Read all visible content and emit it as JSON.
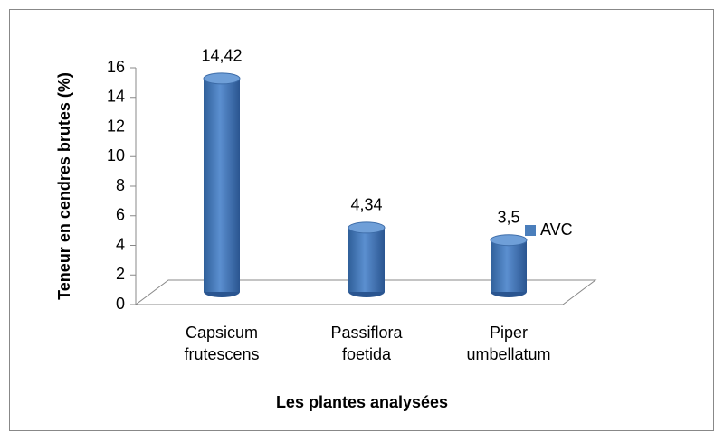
{
  "chart_data": {
    "type": "bar",
    "x_label": "Les plantes analysées",
    "y_label": "Teneur en cendres brutes (%)",
    "categories": [
      "Capsicum frutescens",
      "Passiflora foetida",
      "Piper umbellatum"
    ],
    "series": [
      {
        "name": "AVC",
        "color": "#4a7ebb",
        "values": [
          14.42,
          4.34,
          3.5
        ],
        "value_labels": [
          "14,42",
          "4,34",
          "3,5"
        ]
      }
    ],
    "ylim": [
      0,
      16
    ],
    "yticks": [
      0,
      2,
      4,
      6,
      8,
      10,
      12,
      14,
      16
    ],
    "legend": "right"
  }
}
